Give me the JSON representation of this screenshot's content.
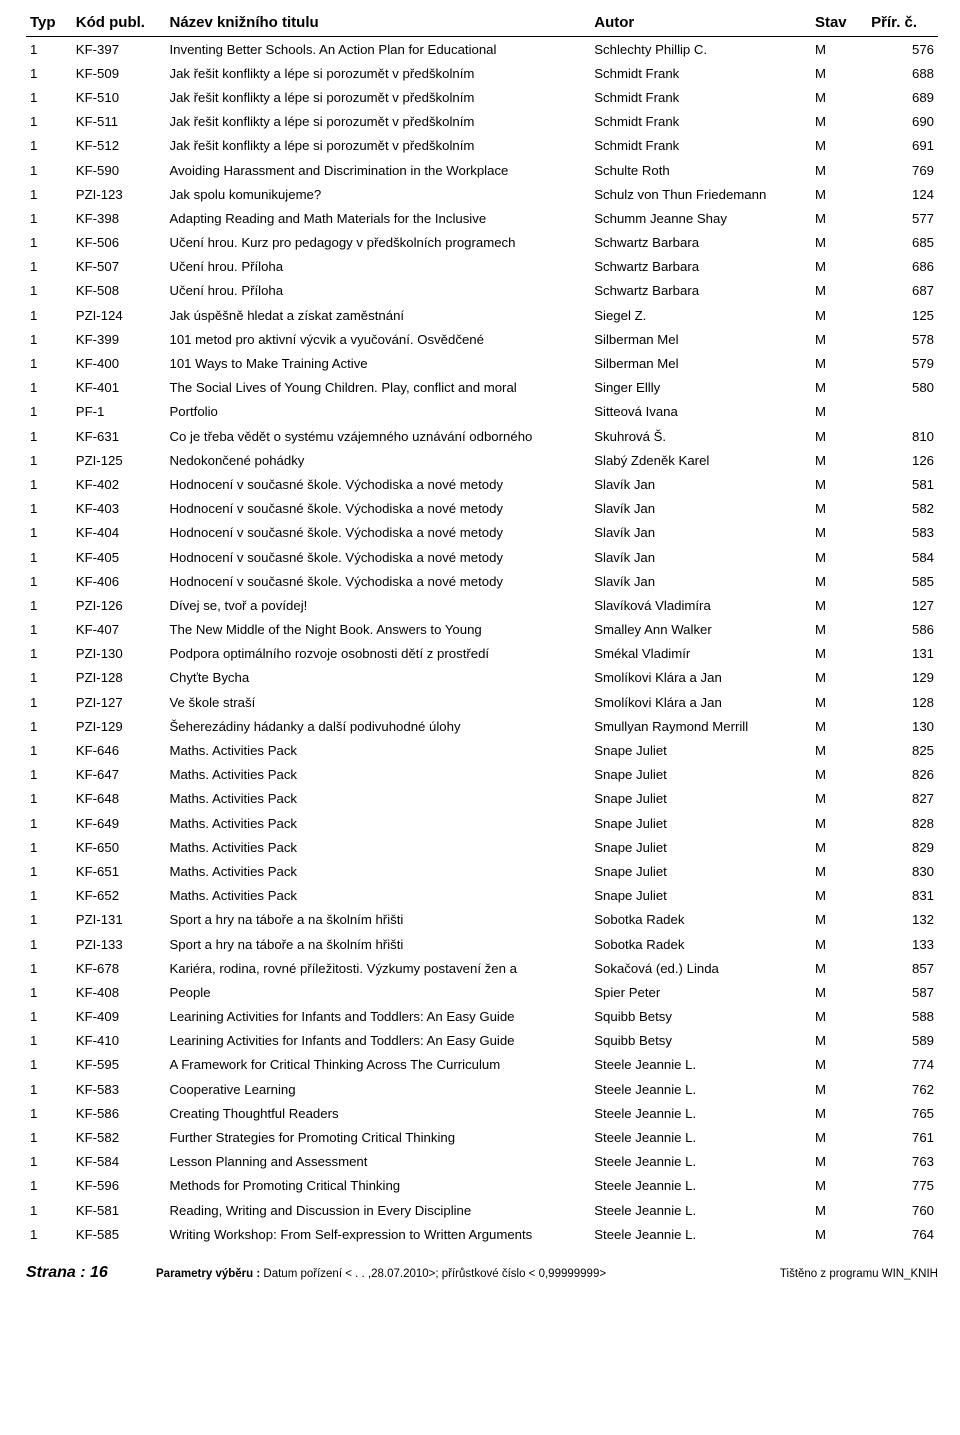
{
  "columns": [
    "Typ",
    "Kód publ.",
    "Název knižního titulu",
    "Autor",
    "Stav",
    "Přír. č."
  ],
  "rows": [
    [
      "1",
      "KF-397",
      "Inventing Better Schools. An Action Plan for Educational",
      "Schlechty Phillip C.",
      "M",
      "576"
    ],
    [
      "1",
      "KF-509",
      "Jak řešit konflikty a lépe si porozumět v předškolním",
      "Schmidt Frank",
      "M",
      "688"
    ],
    [
      "1",
      "KF-510",
      "Jak řešit konflikty a lépe si porozumět v předškolním",
      "Schmidt Frank",
      "M",
      "689"
    ],
    [
      "1",
      "KF-511",
      "Jak řešit konflikty a lépe si porozumět v předškolním",
      "Schmidt Frank",
      "M",
      "690"
    ],
    [
      "1",
      "KF-512",
      "Jak řešit konflikty a lépe si porozumět v předškolním",
      "Schmidt Frank",
      "M",
      "691"
    ],
    [
      "1",
      "KF-590",
      "Avoiding Harassment and Discrimination in the Workplace",
      "Schulte Roth",
      "M",
      "769"
    ],
    [
      "1",
      "PZI-123",
      "Jak spolu komunikujeme?",
      "Schulz von Thun Friedemann",
      "M",
      "124"
    ],
    [
      "1",
      "KF-398",
      "Adapting Reading and Math Materials for the Inclusive",
      "Schumm Jeanne Shay",
      "M",
      "577"
    ],
    [
      "1",
      "KF-506",
      "Učení hrou. Kurz pro pedagogy v předškolních programech",
      "Schwartz Barbara",
      "M",
      "685"
    ],
    [
      "1",
      "KF-507",
      "Učení hrou. Příloha",
      "Schwartz Barbara",
      "M",
      "686"
    ],
    [
      "1",
      "KF-508",
      "Učení hrou. Příloha",
      "Schwartz Barbara",
      "M",
      "687"
    ],
    [
      "1",
      "PZI-124",
      "Jak úspěšně hledat a získat zaměstnání",
      "Siegel Z.",
      "M",
      "125"
    ],
    [
      "1",
      "KF-399",
      "101 metod pro aktivní výcvik a vyučování. Osvědčené",
      "Silberman Mel",
      "M",
      "578"
    ],
    [
      "1",
      "KF-400",
      "101 Ways to Make Training Active",
      "Silberman Mel",
      "M",
      "579"
    ],
    [
      "1",
      "KF-401",
      "The Social Lives of Young Children. Play, conflict and moral",
      "Singer Ellly",
      "M",
      "580"
    ],
    [
      "1",
      "PF-1",
      "Portfolio",
      "Sitteová Ivana",
      "M",
      ""
    ],
    [
      "1",
      "KF-631",
      "Co je třeba vědět o systému vzájemného uznávání odborného",
      "Skuhrová Š.",
      "M",
      "810"
    ],
    [
      "1",
      "PZI-125",
      "Nedokončené pohádky",
      "Slabý Zdeněk Karel",
      "M",
      "126"
    ],
    [
      "1",
      "KF-402",
      "Hodnocení v současné škole. Východiska a nové metody",
      "Slavík Jan",
      "M",
      "581"
    ],
    [
      "1",
      "KF-403",
      "Hodnocení v současné škole. Východiska a nové metody",
      "Slavík Jan",
      "M",
      "582"
    ],
    [
      "1",
      "KF-404",
      "Hodnocení v současné škole. Východiska a nové metody",
      "Slavík Jan",
      "M",
      "583"
    ],
    [
      "1",
      "KF-405",
      "Hodnocení v současné škole. Východiska a nové metody",
      "Slavík Jan",
      "M",
      "584"
    ],
    [
      "1",
      "KF-406",
      "Hodnocení v současné škole. Východiska a nové metody",
      "Slavík Jan",
      "M",
      "585"
    ],
    [
      "1",
      "PZI-126",
      "Dívej se, tvoř a povídej!",
      "Slavíková Vladimíra",
      "M",
      "127"
    ],
    [
      "1",
      "KF-407",
      "The New Middle of the Night Book. Answers to Young",
      "Smalley Ann Walker",
      "M",
      "586"
    ],
    [
      "1",
      "PZI-130",
      "Podpora optimálního rozvoje osobnosti dětí z prostředí",
      "Smékal Vladimír",
      "M",
      "131"
    ],
    [
      "1",
      "PZI-128",
      "Chyťte Bycha",
      "Smolíkovi Klára a Jan",
      "M",
      "129"
    ],
    [
      "1",
      "PZI-127",
      "Ve škole straší",
      "Smolíkovi Klára a Jan",
      "M",
      "128"
    ],
    [
      "1",
      "PZI-129",
      "Šeherezádiny hádanky a další podivuhodné úlohy",
      "Smullyan Raymond Merrill",
      "M",
      "130"
    ],
    [
      "1",
      "KF-646",
      "Maths. Activities Pack",
      "Snape Juliet",
      "M",
      "825"
    ],
    [
      "1",
      "KF-647",
      "Maths. Activities Pack",
      "Snape Juliet",
      "M",
      "826"
    ],
    [
      "1",
      "KF-648",
      "Maths. Activities Pack",
      "Snape Juliet",
      "M",
      "827"
    ],
    [
      "1",
      "KF-649",
      "Maths. Activities Pack",
      "Snape Juliet",
      "M",
      "828"
    ],
    [
      "1",
      "KF-650",
      "Maths. Activities Pack",
      "Snape Juliet",
      "M",
      "829"
    ],
    [
      "1",
      "KF-651",
      "Maths. Activities Pack",
      "Snape Juliet",
      "M",
      "830"
    ],
    [
      "1",
      "KF-652",
      "Maths. Activities Pack",
      "Snape Juliet",
      "M",
      "831"
    ],
    [
      "1",
      "PZI-131",
      "Sport a hry na táboře a na školním hřišti",
      "Sobotka Radek",
      "M",
      "132"
    ],
    [
      "1",
      "PZI-133",
      "Sport a hry na táboře a na školním hřišti",
      "Sobotka Radek",
      "M",
      "133"
    ],
    [
      "1",
      "KF-678",
      "Kariéra, rodina, rovné příležitosti. Výzkumy postavení žen a",
      "Sokačová (ed.) Linda",
      "M",
      "857"
    ],
    [
      "1",
      "KF-408",
      "People",
      "Spier Peter",
      "M",
      "587"
    ],
    [
      "1",
      "KF-409",
      "Learining Activities for Infants and Toddlers: An Easy Guide",
      "Squibb Betsy",
      "M",
      "588"
    ],
    [
      "1",
      "KF-410",
      "Learining Activities for Infants and Toddlers: An Easy Guide",
      "Squibb Betsy",
      "M",
      "589"
    ],
    [
      "1",
      "KF-595",
      "A Framework for Critical Thinking Across The Curriculum",
      "Steele Jeannie L.",
      "M",
      "774"
    ],
    [
      "1",
      "KF-583",
      "Cooperative Learning",
      "Steele Jeannie L.",
      "M",
      "762"
    ],
    [
      "1",
      "KF-586",
      "Creating Thoughtful Readers",
      "Steele Jeannie L.",
      "M",
      "765"
    ],
    [
      "1",
      "KF-582",
      "Further Strategies for Promoting Critical Thinking",
      "Steele Jeannie L.",
      "M",
      "761"
    ],
    [
      "1",
      "KF-584",
      "Lesson Planning and Assessment",
      "Steele Jeannie L.",
      "M",
      "763"
    ],
    [
      "1",
      "KF-596",
      "Methods for Promoting Critical Thinking",
      "Steele Jeannie L.",
      "M",
      "775"
    ],
    [
      "1",
      "KF-581",
      "Reading, Writing and Discussion in Every Discipline",
      "Steele Jeannie L.",
      "M",
      "760"
    ],
    [
      "1",
      "KF-585",
      "Writing Workshop: From Self-expression to Written Arguments",
      "Steele Jeannie L.",
      "M",
      "764"
    ]
  ],
  "footer": {
    "page_label": "Strana : 16",
    "params_label": "Parametry výběru :",
    "params_text": " Datum pořízení < .  . ,28.07.2010>; přírůstkové číslo <          0,99999999>",
    "printed": "Tištěno z programu WIN_KNIH"
  }
}
